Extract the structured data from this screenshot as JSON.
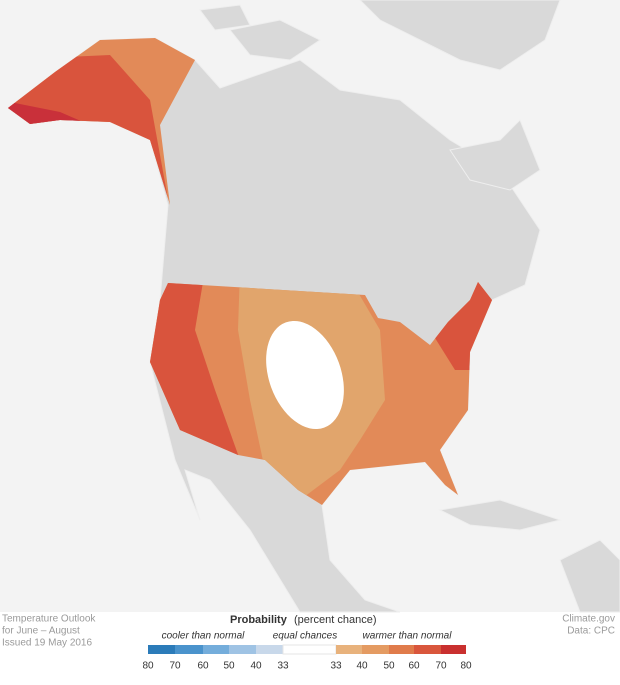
{
  "footer": {
    "outlook": [
      "Temperature Outlook",
      "for June – August",
      "Issued 19 May 2016"
    ],
    "credit": [
      "Climate.gov",
      "Data: CPC"
    ]
  },
  "legend": {
    "title": "Probability",
    "subtitle": "(percent chance)",
    "groups": [
      "cooler than normal",
      "equal chances",
      "warmer than normal"
    ],
    "cooler_ticks": [
      80,
      70,
      60,
      50,
      40,
      33
    ],
    "warmer_ticks": [
      33,
      40,
      50,
      60,
      70,
      80
    ]
  }
}
